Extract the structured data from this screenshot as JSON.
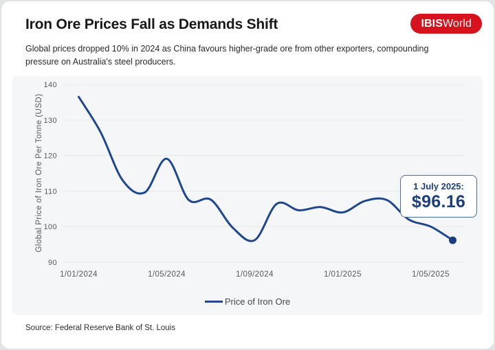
{
  "page": {
    "title": "Iron Ore Prices Fall as Demands Shift",
    "subtitle": "Global prices dropped 10% in 2024 as China favours higher-grade ore from other exporters, compounding pressure on Australia's steel producers.",
    "source": "Source: Federal Reserve Bank of St. Louis"
  },
  "logo": {
    "bold": "IBIS",
    "regular": "World",
    "bg_color": "#d6131c",
    "text_color": "#ffffff"
  },
  "annotation": {
    "label": "1 July 2025:",
    "value": "$96.16"
  },
  "legend": {
    "label": "Price of Iron Ore"
  },
  "colors": {
    "line": "#1e478f",
    "marker": "#1c3e7e",
    "grid": "#e8e9eb",
    "tick_text": "#57595d",
    "panel_bg": "#f5f6f7",
    "annotation_border": "#4a6aa5",
    "annotation_text": "#1c3e7e"
  },
  "chart_data": {
    "type": "line",
    "title": "Iron Ore Prices Fall as Demands Shift",
    "xlabel": "",
    "ylabel": "Global Price of Iron Ore Per Tonne (USD)",
    "ylim": [
      90,
      140
    ],
    "yticks": [
      90,
      100,
      110,
      120,
      130,
      140
    ],
    "xtick_indices": [
      0,
      4,
      8,
      12,
      16
    ],
    "xtick_labels": [
      "1/01/2024",
      "1/05/2024",
      "1/09/2024",
      "1/01/2025",
      "1/05/2025"
    ],
    "grid": true,
    "legend_position": "bottom",
    "series": [
      {
        "name": "Price of Iron Ore",
        "points": [
          {
            "date": "1/01/2024",
            "value": 136.5
          },
          {
            "date": "1/02/2024",
            "value": 126.5
          },
          {
            "date": "1/03/2024",
            "value": 113.0
          },
          {
            "date": "1/04/2024",
            "value": 109.6
          },
          {
            "date": "1/05/2024",
            "value": 119.1
          },
          {
            "date": "1/06/2024",
            "value": 107.5
          },
          {
            "date": "1/07/2024",
            "value": 107.6
          },
          {
            "date": "1/08/2024",
            "value": 99.7
          },
          {
            "date": "1/09/2024",
            "value": 96.2
          },
          {
            "date": "1/10/2024",
            "value": 106.4
          },
          {
            "date": "1/11/2024",
            "value": 104.6
          },
          {
            "date": "1/12/2024",
            "value": 105.5
          },
          {
            "date": "1/01/2025",
            "value": 104.0
          },
          {
            "date": "1/02/2025",
            "value": 107.2
          },
          {
            "date": "1/03/2025",
            "value": 107.5
          },
          {
            "date": "1/04/2025",
            "value": 102.0
          },
          {
            "date": "1/05/2025",
            "value": 100.0
          },
          {
            "date": "1/07/2025",
            "value": 96.16
          }
        ]
      }
    ],
    "end_marker": {
      "date": "1 July 2025",
      "value": 96.16
    }
  }
}
